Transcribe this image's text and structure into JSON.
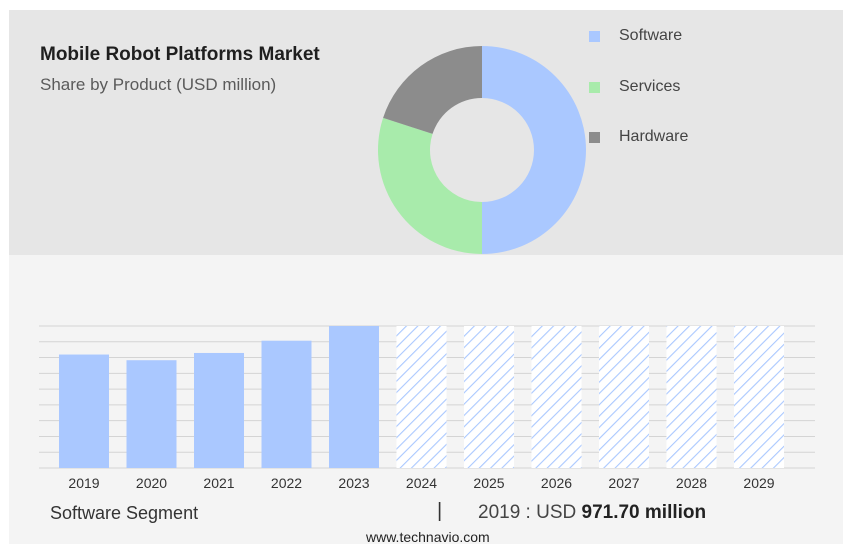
{
  "header": {
    "title": "Mobile Robot Platforms Market",
    "subtitle": "Share by Product (USD million)"
  },
  "legend": [
    {
      "label": "Software",
      "color": "#aac8ff"
    },
    {
      "label": "Services",
      "color": "#a8ebab"
    },
    {
      "label": "Hardware",
      "color": "#8c8c8c"
    }
  ],
  "chart_data": [
    {
      "type": "pie",
      "style": "donut",
      "labels": [
        "Software",
        "Services",
        "Hardware"
      ],
      "values": [
        50,
        30,
        20
      ],
      "colors": [
        "#aac8ff",
        "#a8ebab",
        "#8c8c8c"
      ]
    },
    {
      "type": "bar",
      "categories": [
        "2019",
        "2020",
        "2021",
        "2022",
        "2023",
        "2024",
        "2025",
        "2026",
        "2027",
        "2028",
        "2029"
      ],
      "values": [
        971.7,
        923,
        985,
        1090,
        1216,
        null,
        null,
        null,
        null,
        null,
        null
      ],
      "forecast_categories": [
        "2024",
        "2025",
        "2026",
        "2027",
        "2028",
        "2029"
      ],
      "color": "#aac8ff",
      "grid": true
    }
  ],
  "footer": {
    "segment_label": "Software Segment",
    "separator": "|",
    "value_prefix": "2019 : USD",
    "value_bold": "971.70 million",
    "source": "www.technavio.com"
  }
}
